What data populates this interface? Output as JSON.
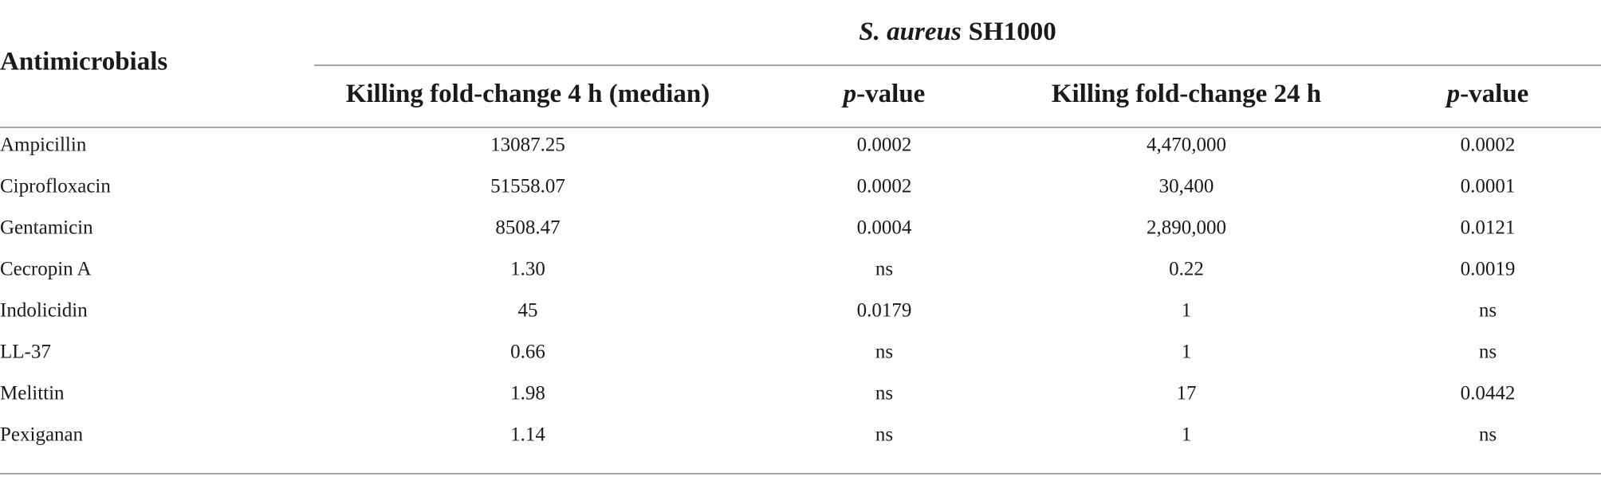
{
  "table": {
    "group_header": {
      "organism": "S. aureus",
      "strain": "SH1000"
    },
    "row_header": "Antimicrobials",
    "columns": [
      {
        "text": "Killing fold-change 4 h (median)"
      },
      {
        "italic": "p",
        "text": "-value"
      },
      {
        "text": "Killing fold-change 24 h"
      },
      {
        "italic": "p",
        "text": "-value"
      }
    ],
    "rows": [
      [
        "Ampicillin",
        "13087.25",
        "0.0002",
        "4,470,000",
        "0.0002"
      ],
      [
        "Ciprofloxacin",
        "51558.07",
        "0.0002",
        "30,400",
        "0.0001"
      ],
      [
        "Gentamicin",
        "8508.47",
        "0.0004",
        "2,890,000",
        "0.0121"
      ],
      [
        "Cecropin A",
        "1.30",
        "ns",
        "0.22",
        "0.0019"
      ],
      [
        "Indolicidin",
        "45",
        "0.0179",
        "1",
        "ns"
      ],
      [
        "LL-37",
        "0.66",
        "ns",
        "1",
        "ns"
      ],
      [
        "Melittin",
        "1.98",
        "ns",
        "17",
        "0.0442"
      ],
      [
        "Pexiganan",
        "1.14",
        "ns",
        "1",
        "ns"
      ]
    ]
  }
}
